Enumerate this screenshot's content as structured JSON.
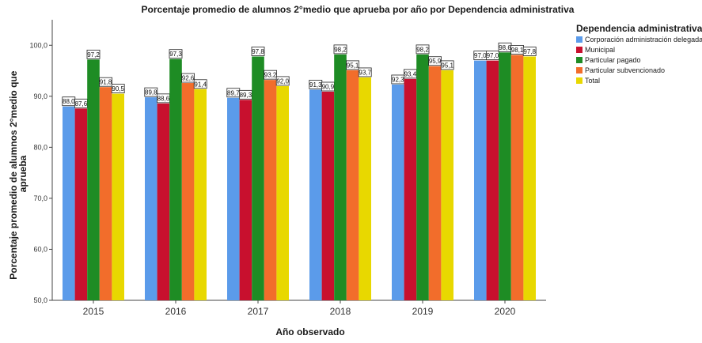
{
  "chart_data": {
    "type": "bar",
    "title": "Porcentaje promedio de alumnos 2°medio que aprueba por año por Dependencia administrativa",
    "xlabel": "Año observado",
    "ylabel": "Porcentaje promedio de alumnos 2°medio que aprueba",
    "ylim": [
      50,
      105
    ],
    "yticks": [
      "50,0",
      "60,0",
      "70,0",
      "80,0",
      "90,0",
      "100,0"
    ],
    "ytick_values": [
      50,
      60,
      70,
      80,
      90,
      100
    ],
    "categories": [
      "2015",
      "2016",
      "2017",
      "2018",
      "2019",
      "2020"
    ],
    "legend_title": "Dependencia administrativa",
    "legend_placement": "top-right",
    "grid": false,
    "series": [
      {
        "name": "Corporación administración delegada",
        "color": "#5b9bea",
        "values": [
          88.0,
          89.8,
          89.7,
          91.3,
          92.3,
          97.0
        ],
        "labels": [
          "88,0",
          "89,8",
          "89,7",
          "91,3",
          "92,3",
          "97,0"
        ]
      },
      {
        "name": "Municipal",
        "color": "#c8102e",
        "values": [
          87.6,
          88.6,
          89.3,
          90.9,
          93.4,
          97.0
        ],
        "labels": [
          "87,6",
          "88,6",
          "89,3",
          "90,9",
          "93,4",
          "97,0"
        ]
      },
      {
        "name": "Particular pagado",
        "color": "#1e8c24",
        "values": [
          97.2,
          97.3,
          97.8,
          98.2,
          98.2,
          98.6
        ],
        "labels": [
          "97,2",
          "97,3",
          "97,8",
          "98,2",
          "98,2",
          "98,6"
        ]
      },
      {
        "name": "Particular subvencionado",
        "color": "#f26d2b",
        "values": [
          91.8,
          92.6,
          93.2,
          95.1,
          95.9,
          98.1
        ],
        "labels": [
          "91,8",
          "92,6",
          "93,2",
          "95,1",
          "95,9",
          "98,1"
        ]
      },
      {
        "name": "Total",
        "color": "#e8d800",
        "values": [
          90.5,
          91.4,
          92.0,
          93.7,
          95.1,
          97.8
        ],
        "labels": [
          "90,5",
          "91,4",
          "92,0",
          "93,7",
          "95,1",
          "97,8"
        ]
      }
    ]
  }
}
